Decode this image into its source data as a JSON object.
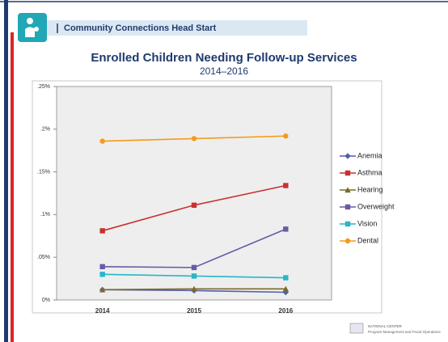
{
  "header": {
    "title": "Community Connections Head Start"
  },
  "footer": {
    "org": "NATIONAL CENTER",
    "program": "Program Management and Fiscal Operations"
  },
  "chart_data": {
    "type": "line",
    "title": "Enrolled Children Needing Follow-up Services",
    "subtitle": "2014–2016",
    "categories": [
      "2014",
      "2015",
      "2016"
    ],
    "series": [
      {
        "name": "Anemia",
        "color": "#4f5fa8",
        "marker": "diamond",
        "values": [
          0.012,
          0.011,
          0.009
        ]
      },
      {
        "name": "Asthma",
        "color": "#c8312f",
        "marker": "square",
        "values": [
          0.081,
          0.111,
          0.134
        ]
      },
      {
        "name": "Hearing",
        "color": "#7d6a2a",
        "marker": "triangle",
        "values": [
          0.012,
          0.013,
          0.013
        ]
      },
      {
        "name": "Overweight",
        "color": "#6a5aa5",
        "marker": "square",
        "values": [
          0.039,
          0.038,
          0.083
        ]
      },
      {
        "name": "Vision",
        "color": "#27b6c8",
        "marker": "square",
        "values": [
          0.03,
          0.028,
          0.026
        ]
      },
      {
        "name": "Dental",
        "color": "#f59a1c",
        "marker": "circle",
        "values": [
          0.186,
          0.189,
          0.192
        ]
      }
    ],
    "ylim": [
      0,
      0.25
    ],
    "yticks": [
      {
        "value": 0,
        "label": "0%"
      },
      {
        "value": 0.05,
        "label": ".05%"
      },
      {
        "value": 0.1,
        "label": ".1%"
      },
      {
        "value": 0.15,
        "label": ".15%"
      },
      {
        "value": 0.2,
        "label": ".2%"
      },
      {
        "value": 0.25,
        "label": ".25%"
      }
    ],
    "grid": false,
    "legend": "right"
  }
}
